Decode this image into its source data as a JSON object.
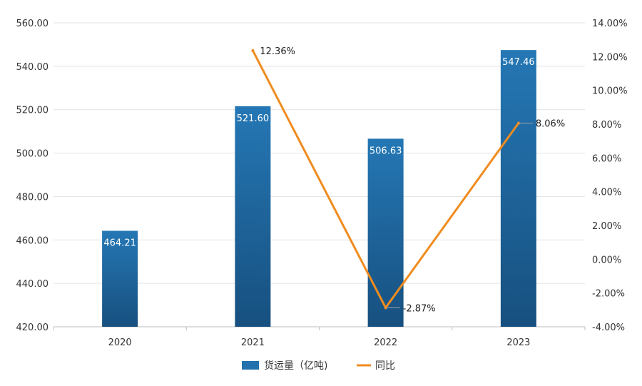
{
  "chart_data": {
    "type": "bar",
    "categories": [
      "2020",
      "2021",
      "2022",
      "2023"
    ],
    "series": [
      {
        "name": "货运量（亿吨)",
        "type": "bar",
        "axis": "left",
        "values": [
          464.21,
          521.6,
          506.63,
          547.46
        ],
        "labels": [
          "464.21",
          "521.60",
          "506.63",
          "547.46"
        ],
        "color": "#2371ad"
      },
      {
        "name": "同比",
        "type": "line",
        "axis": "right",
        "values": [
          12.36,
          -2.87,
          8.06
        ],
        "x": [
          "2021",
          "2022",
          "2023"
        ],
        "labels": [
          "12.36%",
          "-2.87%",
          "8.06%"
        ],
        "color": "#f08c1f"
      }
    ],
    "y_left": {
      "ylim": [
        420,
        560
      ],
      "ticks": [
        "420.00",
        "440.00",
        "460.00",
        "480.00",
        "500.00",
        "520.00",
        "540.00",
        "560.00"
      ]
    },
    "y_right": {
      "ylim": [
        -4,
        14
      ],
      "ticks": [
        "-4.00%",
        "-2.00%",
        "0.00%",
        "2.00%",
        "4.00%",
        "6.00%",
        "8.00%",
        "10.00%",
        "12.00%",
        "14.00%"
      ]
    },
    "grid": true,
    "legend_position": "bottom-center",
    "colors": {
      "bar_top": "#2577b5",
      "bar_bottom": "#17507f",
      "line": "#f08c1f",
      "grid": "#e3e3e3"
    }
  }
}
